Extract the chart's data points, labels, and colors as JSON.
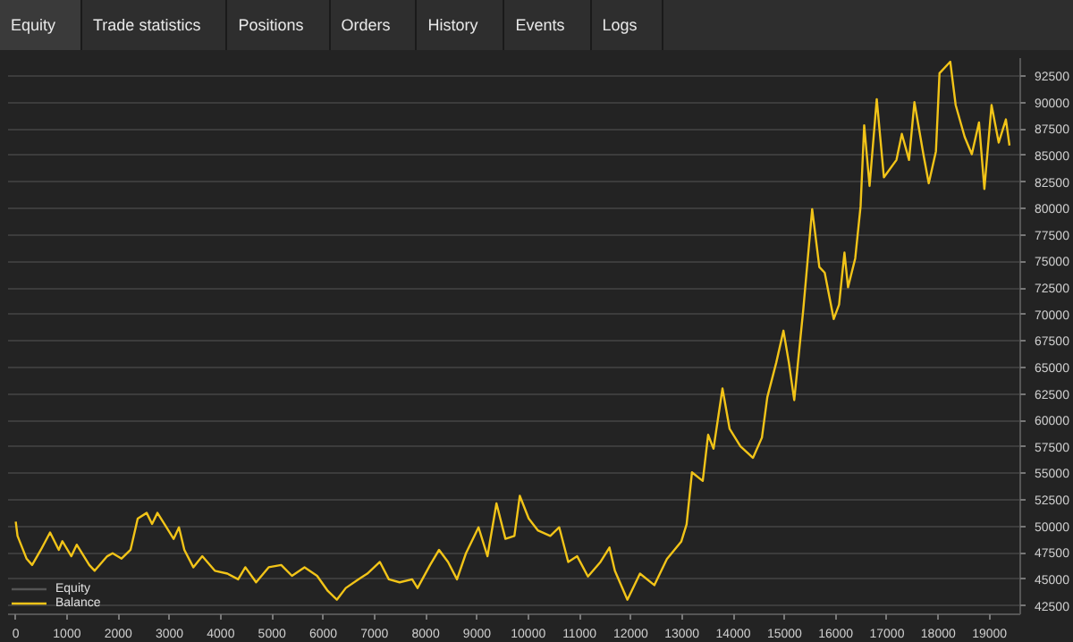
{
  "chart_data": {
    "type": "line",
    "annotations": [
      "Equity",
      "Trade statistics",
      "Positions",
      "Orders",
      "History",
      "Events",
      "Logs"
    ],
    "x": [
      0,
      35,
      210,
      320,
      490,
      670,
      840,
      910,
      1085,
      1190,
      1435,
      1540,
      1785,
      1890,
      2065,
      2240,
      2380,
      2555,
      2660,
      2765,
      2940,
      3080,
      3185,
      3290,
      3465,
      3640,
      3885,
      4130,
      4340,
      4480,
      4690,
      4935,
      5180,
      5390,
      5635,
      5880,
      6090,
      6265,
      6440,
      6685,
      6860,
      7105,
      7280,
      7490,
      7735,
      7840,
      8085,
      8260,
      8435,
      8610,
      8785,
      9030,
      9205,
      9380,
      9555,
      9730,
      9835,
      10010,
      10185,
      10430,
      10605,
      10780,
      10955,
      11165,
      11410,
      11585,
      11690,
      11935,
      12180,
      12460,
      12705,
      12985,
      13090,
      13195,
      13405,
      13510,
      13615,
      13790,
      13930,
      14140,
      14385,
      14560,
      14665,
      14840,
      14980,
      15085,
      15190,
      15365,
      15540,
      15680,
      15785,
      15960,
      16065,
      16170,
      16240,
      16380,
      16485,
      16555,
      16660,
      16800,
      16940,
      17185,
      17290,
      17430,
      17535,
      17710,
      17815,
      17955,
      18025,
      18235,
      18340,
      18515,
      18655,
      18795,
      18900,
      19040,
      19180,
      19320,
      19390
    ],
    "series": [
      {
        "name": "Equity",
        "color": "#555555",
        "values": [
          null,
          null,
          null,
          null,
          null,
          null,
          null,
          null,
          null,
          null,
          null,
          null,
          null,
          null,
          null,
          null,
          null,
          null,
          null,
          null,
          null,
          null,
          null,
          null,
          null,
          null,
          null,
          null,
          null,
          null,
          null,
          null,
          null,
          null,
          null,
          null,
          null,
          null,
          null,
          null,
          null,
          null,
          null,
          null,
          null,
          null,
          null,
          null,
          null,
          null,
          null,
          null,
          null,
          null,
          null,
          null,
          null,
          null,
          null,
          null,
          null,
          null,
          null,
          null,
          null,
          null,
          null,
          null,
          null,
          null,
          null,
          null,
          null,
          null,
          null,
          null,
          null,
          null,
          null,
          null,
          null,
          null,
          null,
          null,
          null,
          null,
          null,
          null,
          null,
          null,
          null,
          null,
          null,
          null,
          null,
          null,
          null,
          null,
          null,
          null,
          null,
          null,
          null,
          null,
          null,
          null,
          null,
          null,
          null,
          null,
          null,
          null,
          null,
          null,
          null,
          null,
          null,
          null,
          null
        ]
      },
      {
        "name": "Balance",
        "color": "#f2c418",
        "values": [
          50450,
          49100,
          46960,
          46350,
          47780,
          49420,
          47780,
          48600,
          47180,
          48270,
          46350,
          45810,
          47180,
          47460,
          46960,
          47780,
          50730,
          51270,
          50230,
          51270,
          49910,
          48820,
          49910,
          47780,
          46140,
          47180,
          45810,
          45540,
          45000,
          46140,
          44720,
          46140,
          46350,
          45330,
          46140,
          45330,
          43900,
          43080,
          44180,
          45000,
          45540,
          46640,
          45000,
          44720,
          45000,
          44180,
          46350,
          47780,
          46640,
          45000,
          47460,
          49910,
          47180,
          52170,
          48820,
          49100,
          52880,
          50730,
          49630,
          49100,
          49910,
          46640,
          47180,
          45270,
          46640,
          48000,
          45810,
          43080,
          45540,
          44450,
          46910,
          48550,
          50190,
          55100,
          54290,
          58640,
          57330,
          63010,
          59200,
          57560,
          56470,
          58380,
          62200,
          65470,
          68470,
          65470,
          61920,
          70390,
          79940,
          74480,
          73940,
          69570,
          70930,
          75840,
          72570,
          75300,
          80220,
          87860,
          82130,
          90320,
          82950,
          84590,
          87050,
          84590,
          90040,
          85130,
          82390,
          85410,
          92780,
          93860,
          89770,
          86770,
          85130,
          88130,
          81850,
          89770,
          86230,
          88410,
          85950
        ]
      }
    ],
    "xlim": [
      -150,
      19600
    ],
    "ylim": [
      41700,
      94200
    ],
    "xticks": [
      0,
      1000,
      2000,
      3000,
      4000,
      5000,
      6000,
      7000,
      8000,
      9000,
      10000,
      11000,
      12000,
      13000,
      14000,
      15000,
      16000,
      17000,
      18000,
      19000
    ],
    "yticks": [
      42500,
      45000,
      47500,
      50000,
      52500,
      55000,
      57500,
      60000,
      62500,
      65000,
      67500,
      70000,
      72500,
      75000,
      77500,
      80000,
      82500,
      85000,
      87500,
      90000,
      92500
    ],
    "grid": "y",
    "legend": "bottom left",
    "line_style": "solid"
  }
}
